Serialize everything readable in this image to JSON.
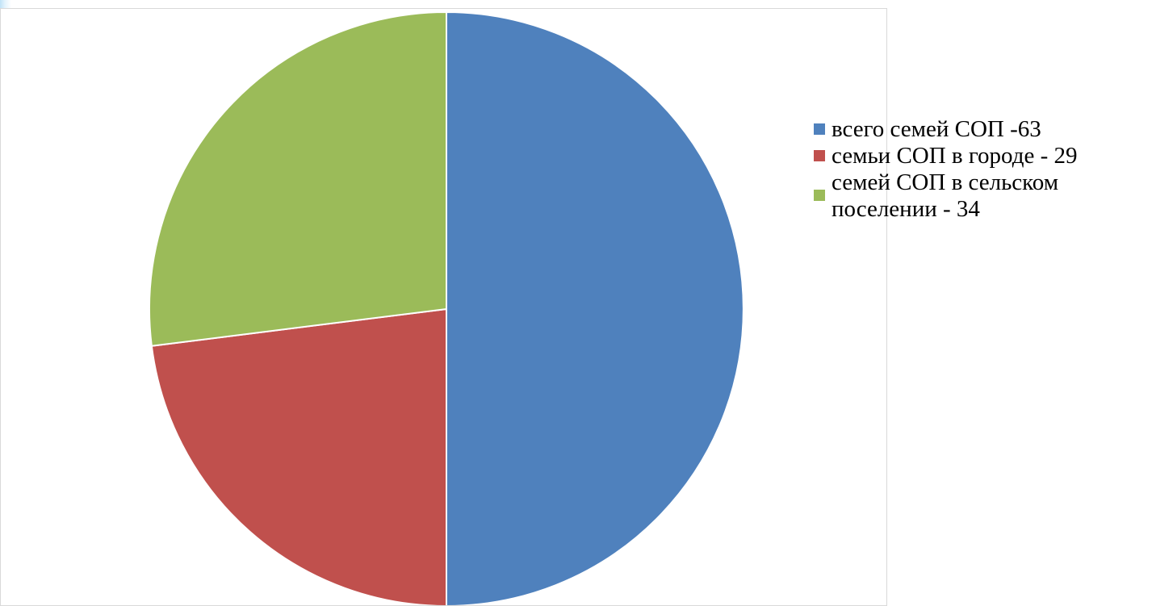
{
  "chart_data": {
    "type": "pie",
    "slices": [
      {
        "label": "всего семей СОП -63",
        "value": 63,
        "color": "#4f81bd"
      },
      {
        "label": "семьи СОП в городе - 29",
        "value": 29,
        "color": "#c0504d"
      },
      {
        "label_lines": [
          "семей СОП в сельском",
          "поселении - 34"
        ],
        "value": 34,
        "color": "#9bbb59"
      }
    ],
    "legend_position": "right",
    "start_angle": "12 o'clock",
    "direction": "clockwise"
  }
}
